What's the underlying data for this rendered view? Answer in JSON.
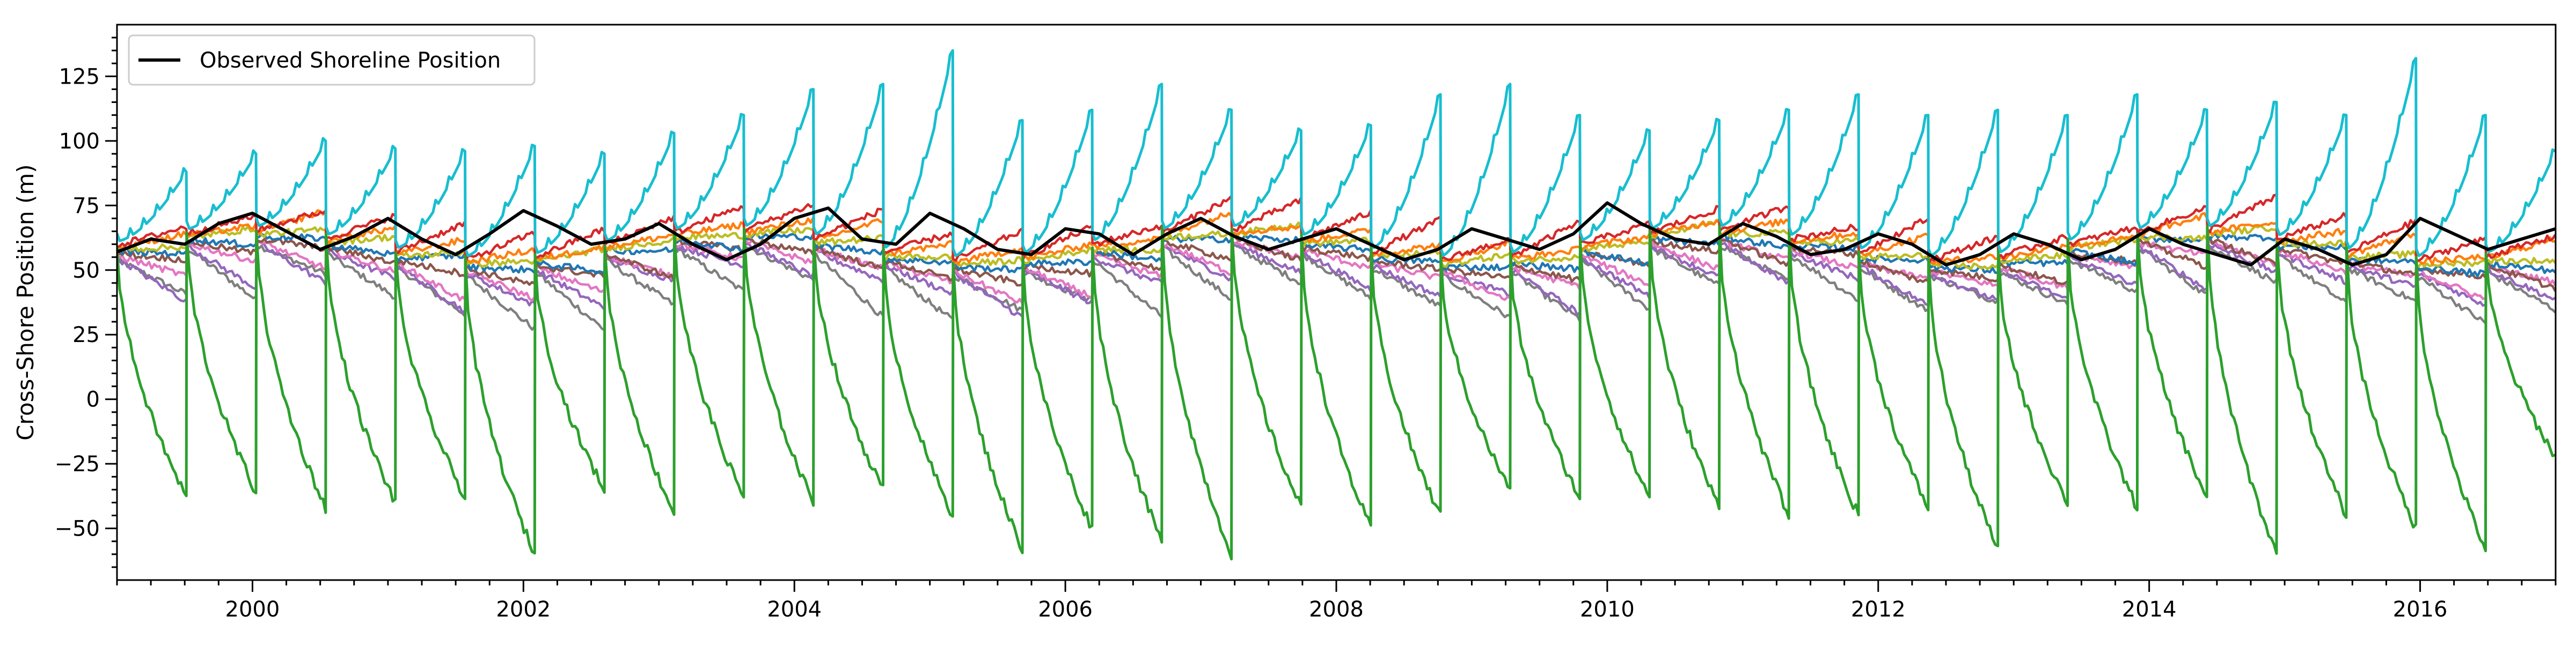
{
  "chart_data": {
    "type": "line",
    "ylabel": "Cross-Shore Position (m)",
    "xlim": [
      1999.0,
      2017.0
    ],
    "ylim": [
      -70,
      145
    ],
    "x_tick_labels": [
      "2000",
      "2002",
      "2004",
      "2006",
      "2008",
      "2010",
      "2012",
      "2014",
      "2016"
    ],
    "x_tick_values": [
      2000,
      2002,
      2004,
      2006,
      2008,
      2010,
      2012,
      2014,
      2016
    ],
    "y_tick_labels": [
      "125",
      "100",
      "75",
      "50",
      "25",
      "0",
      "−25",
      "−50"
    ],
    "y_tick_values": [
      125,
      100,
      75,
      50,
      25,
      0,
      -25,
      -50
    ],
    "grid": false,
    "legend": {
      "position": "top-left",
      "entries": [
        {
          "name": "Observed Shoreline Position",
          "color": "#000000"
        }
      ]
    },
    "observed": {
      "color": "#000000",
      "x": [
        1999.0,
        1999.25,
        1999.5,
        1999.75,
        2000.0,
        2000.25,
        2000.5,
        2000.75,
        2001.0,
        2001.25,
        2001.5,
        2001.75,
        2002.0,
        2002.25,
        2002.5,
        2002.75,
        2003.0,
        2003.25,
        2003.5,
        2003.75,
        2004.0,
        2004.25,
        2004.5,
        2004.75,
        2005.0,
        2005.25,
        2005.5,
        2005.75,
        2006.0,
        2006.25,
        2006.5,
        2006.75,
        2007.0,
        2007.25,
        2007.5,
        2007.75,
        2008.0,
        2008.25,
        2008.5,
        2008.75,
        2009.0,
        2009.25,
        2009.5,
        2009.75,
        2010.0,
        2010.25,
        2010.5,
        2010.75,
        2011.0,
        2011.25,
        2011.5,
        2011.75,
        2012.0,
        2012.25,
        2012.5,
        2012.75,
        2013.0,
        2013.25,
        2013.5,
        2013.75,
        2014.0,
        2014.25,
        2014.5,
        2014.75,
        2015.0,
        2015.25,
        2015.5,
        2015.75,
        2016.0,
        2016.25,
        2016.5,
        2016.75,
        2017.0
      ],
      "y": [
        57,
        62,
        60,
        68,
        72,
        65,
        58,
        63,
        70,
        62,
        56,
        64,
        73,
        67,
        60,
        62,
        68,
        60,
        54,
        60,
        70,
        74,
        62,
        60,
        72,
        66,
        58,
        56,
        66,
        64,
        56,
        64,
        70,
        63,
        58,
        62,
        66,
        60,
        54,
        58,
        66,
        62,
        58,
        64,
        76,
        68,
        62,
        60,
        68,
        63,
        56,
        58,
        64,
        60,
        52,
        56,
        64,
        60,
        54,
        58,
        66,
        60,
        56,
        52,
        62,
        58,
        52,
        56,
        70,
        64,
        58,
        62,
        66
      ]
    },
    "model_envelope": {
      "colors": [
        "#1f77b4",
        "#ff7f0e",
        "#2ca02c",
        "#d62728",
        "#9467bd",
        "#8c564b",
        "#e377c2",
        "#7f7f7f",
        "#bcbd22",
        "#17becf"
      ],
      "upper_peaks": [
        88,
        95,
        100,
        97,
        96,
        98,
        95,
        103,
        110,
        120,
        122,
        135,
        108,
        112,
        122,
        112,
        104,
        106,
        118,
        122,
        110,
        104,
        108,
        112,
        118,
        110,
        112,
        110,
        118,
        112,
        115,
        110,
        132,
        110,
        96
      ],
      "lower_troughs": [
        -38,
        -36,
        -42,
        -40,
        -38,
        -60,
        -35,
        -44,
        -38,
        -40,
        -35,
        -45,
        -58,
        -50,
        -55,
        -60,
        -42,
        -50,
        -45,
        -35,
        -38,
        -38,
        -42,
        -45,
        -45,
        -42,
        -58,
        -40,
        -42,
        -38,
        -60,
        -45,
        -50,
        -58,
        -22
      ]
    }
  }
}
